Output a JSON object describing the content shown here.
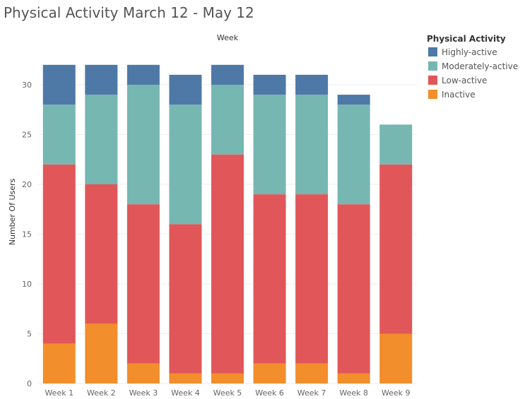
{
  "chart_data": {
    "type": "bar",
    "stacked": true,
    "title": "Physical Activity March 12 - May 12",
    "top_axis_label": "Week",
    "xlabel": "",
    "ylabel": "Number Of Users",
    "ylim": [
      0,
      32
    ],
    "yticks": [
      0,
      5,
      10,
      15,
      20,
      25,
      30
    ],
    "grid": true,
    "legend_title": "Physical Activity",
    "legend_position": "top-right",
    "categories": [
      "Week 1",
      "Week 2",
      "Week 3",
      "Week 4",
      "Week 5",
      "Week 6",
      "Week 7",
      "Week 8",
      "Week 9"
    ],
    "series": [
      {
        "name": "Inactive",
        "color": "#F28E2B",
        "values": [
          4,
          6,
          2,
          1,
          1,
          2,
          2,
          1,
          5
        ]
      },
      {
        "name": "Low-active",
        "color": "#E15759",
        "values": [
          18,
          14,
          16,
          15,
          22,
          17,
          17,
          17,
          17
        ]
      },
      {
        "name": "Moderately-active",
        "color": "#76B7B2",
        "values": [
          6,
          9,
          12,
          12,
          7,
          10,
          10,
          10,
          4
        ]
      },
      {
        "name": "Highly-active",
        "color": "#4E79A7",
        "values": [
          4,
          3,
          2,
          3,
          2,
          2,
          2,
          1,
          0
        ]
      }
    ],
    "legend_order": [
      "Highly-active",
      "Moderately-active",
      "Low-active",
      "Inactive"
    ]
  }
}
